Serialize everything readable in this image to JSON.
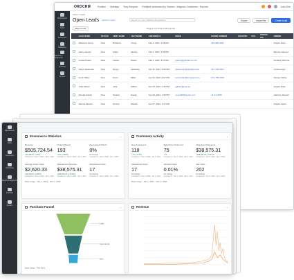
{
  "back": {
    "brand": "OROCRM",
    "top_menu": [
      "Position",
      "Holidays",
      "Tony Simpson",
      "Printable customers by Owners - Magento Customers - Reports"
    ],
    "top_search_placeholder": "",
    "user": "John Doe",
    "breadcrumb": "Sales / Leads",
    "title": "Open Leads",
    "title_options": "Options  Leads",
    "title_search_placeholder": "Search or input \"Satisfied Requisition\"",
    "buttons": {
      "export": "Export",
      "import": "Import file",
      "create": "Create Lead"
    },
    "toolbar": {
      "select": "Export Grid",
      "pager": "Page  1  of 3   Total of 38 records"
    },
    "nav": [
      "Dashboards",
      "Sales",
      "Customers",
      "Marketing",
      "Reports & Segments",
      "Activities",
      "System"
    ],
    "columns": [
      "",
      "LEAD NAME",
      "STATUS",
      "FIRST NAME",
      "LAST NAME",
      "CREATED AT",
      "EMAIL",
      "PHONE NUMBER",
      "COUNTRY",
      "STA.",
      "POSTAL CO.",
      "OWNER"
    ],
    "rows": [
      [
        "",
        "Rebecca Young",
        "New",
        "Rebecca",
        "Young",
        "Feb 2, 2021, 1:28 PM",
        "",
        "619-868-9811",
        "",
        "",
        "",
        "Angelo Rose"
      ],
      [
        "",
        "Adam Jacobs",
        "New",
        "Adam",
        "Jacobs",
        "Feb 2, 2021, 1:28 PM",
        "",
        "",
        "",
        "",
        "",
        "Bernice Gilmore"
      ],
      [
        "",
        "Louise Peters",
        "New",
        "Louise",
        "Peters",
        "Feb 2, 2021, 9:37 AM",
        "jpeters@jazzfire.com.br",
        "",
        "",
        "",
        "",
        "Kimberly Monroe"
      ],
      [
        "",
        "Nancy Lawrence",
        "New",
        "Nancy",
        "Lawrence",
        "Jan 31, 2021, 9:45 PM",
        "lawrencen@alphabet.com",
        "317-295-6637",
        "",
        "",
        "",
        "Jenna Lopez"
      ],
      [
        "",
        "Kevin Miller",
        "New",
        "Kevin",
        "Miller",
        "Jan 31, 2021, 9:37 PM",
        "kevinmiller@longview.com",
        "571-755-6630",
        "",
        "",
        "",
        "Denise Clarke"
      ],
      [
        "",
        "Julia Gilbert",
        "New",
        "Julia",
        "Gilbert",
        "Jan 29, 2021, 1:39 PM",
        "jgilbert@jsob.co",
        "",
        "",
        "",
        "",
        "Angelo Ross"
      ],
      [
        "",
        "Sandra Gaedy",
        "New",
        "Sandra",
        "Gaedy",
        "Jan 29, 2021, 1:39 PM",
        "sound82@jaydry.com",
        "41-34-7658",
        "",
        "",
        "",
        "Harrison Stewart"
      ],
      [
        "",
        "Dennis Stewart",
        "New",
        "Dennis",
        "Stewart",
        "Jan 27, 2021, 2:17 PM",
        "",
        "",
        "",
        "",
        "",
        "Angelo Velero"
      ]
    ]
  },
  "front": {
    "nav": [
      "Dashboards",
      "Sales",
      "Customers",
      "Marketing",
      "Reports & Segments",
      "Activities",
      "System"
    ],
    "ecom": {
      "title": "Ecommerce Statistics",
      "metrics": [
        {
          "label": "Revenue",
          "value": "$505,724.54",
          "change": "+$2,488.00 (+40%)",
          "compare": "Compare to : Dec 2, 2020 - Jan 1, 2021",
          "up": true
        },
        {
          "label": "Orders Placed",
          "value": "193",
          "change": "+151 (+359%)",
          "compare": "Compare to : Dec 2, 2020 - Jan 1, 2021",
          "up": true
        },
        {
          "label": "Discounted Orders",
          "value": "0%",
          "change": "No change",
          "compare": "Compare to : Dec 2, 2020 - Jan 1, 2021",
          "up": false
        },
        {
          "label": "Average Order Value",
          "value": "$2,620.33",
          "change": "+$1,818.00 (+228%)",
          "compare": "Compare to : Dec 2, 2020 - Jan 1, 2021",
          "up": true
        },
        {
          "label": "Abandoned Revenue",
          "value": "$38,575.31",
          "change": "+$38,035.25 (+7043%)",
          "compare": "Compare to : Dec 2, 2020 - Jan 1, 2021",
          "up": true
        },
        {
          "label": "Abandoned Carts",
          "value": "17",
          "change": "No change",
          "compare": "Compare to : Dec 2, 2020 - Jan 1, 2021",
          "up": false
        }
      ],
      "date_range": "Date range : Jan 1, 2021 - Feb 1, 2021"
    },
    "activity": {
      "title": "Customers Activity",
      "metrics": [
        {
          "label": "New Customers",
          "value": "118",
          "change": "+75 (+174%)",
          "compare": "Compare to : Dec 2, 2020 - Jan 1, 2021",
          "up": true
        },
        {
          "label": "Returning Customers",
          "value": "75",
          "change": "+75",
          "compare": "Compare to : Dec 2, 2020 - Jan 1, 2021",
          "up": true
        },
        {
          "label": "Abandoned Revenue",
          "value": "$38,575.31",
          "change": "+$38,035.25 (+7043%)",
          "compare": "Compare to : Dec 2, 2020 - Jan 1, 2021",
          "up": true
        },
        {
          "label": "Abandoned Carts",
          "value": "17",
          "change": "No change",
          "compare": "Compare to : Dec 2, 2020 - Jan 1, 2021",
          "up": false
        },
        {
          "label": "Abandon Rate",
          "value": "0.01%",
          "change": "No change",
          "compare": "Compare to : Dec 2, 2020 - Jan 1, 2021",
          "up": false
        },
        {
          "label": "Site Visits",
          "value": "202",
          "change": "No change",
          "compare": "Compare to : Dec 2, 2020 - Jan 1, 2021",
          "up": false
        }
      ],
      "date_range": "Date range : Jan 1, 2021 - Feb 1, 2021"
    },
    "funnel": {
      "title": "Purchase Funnel",
      "stage_labels": [
        "Lead",
        "Opportunity",
        "Won"
      ],
      "colors": [
        "#8fbf60",
        "#2f6f73",
        "#35a7d6"
      ],
      "date_range": "Date range : Feb 2021"
    },
    "revenue": {
      "title": "Revenue"
    }
  }
}
